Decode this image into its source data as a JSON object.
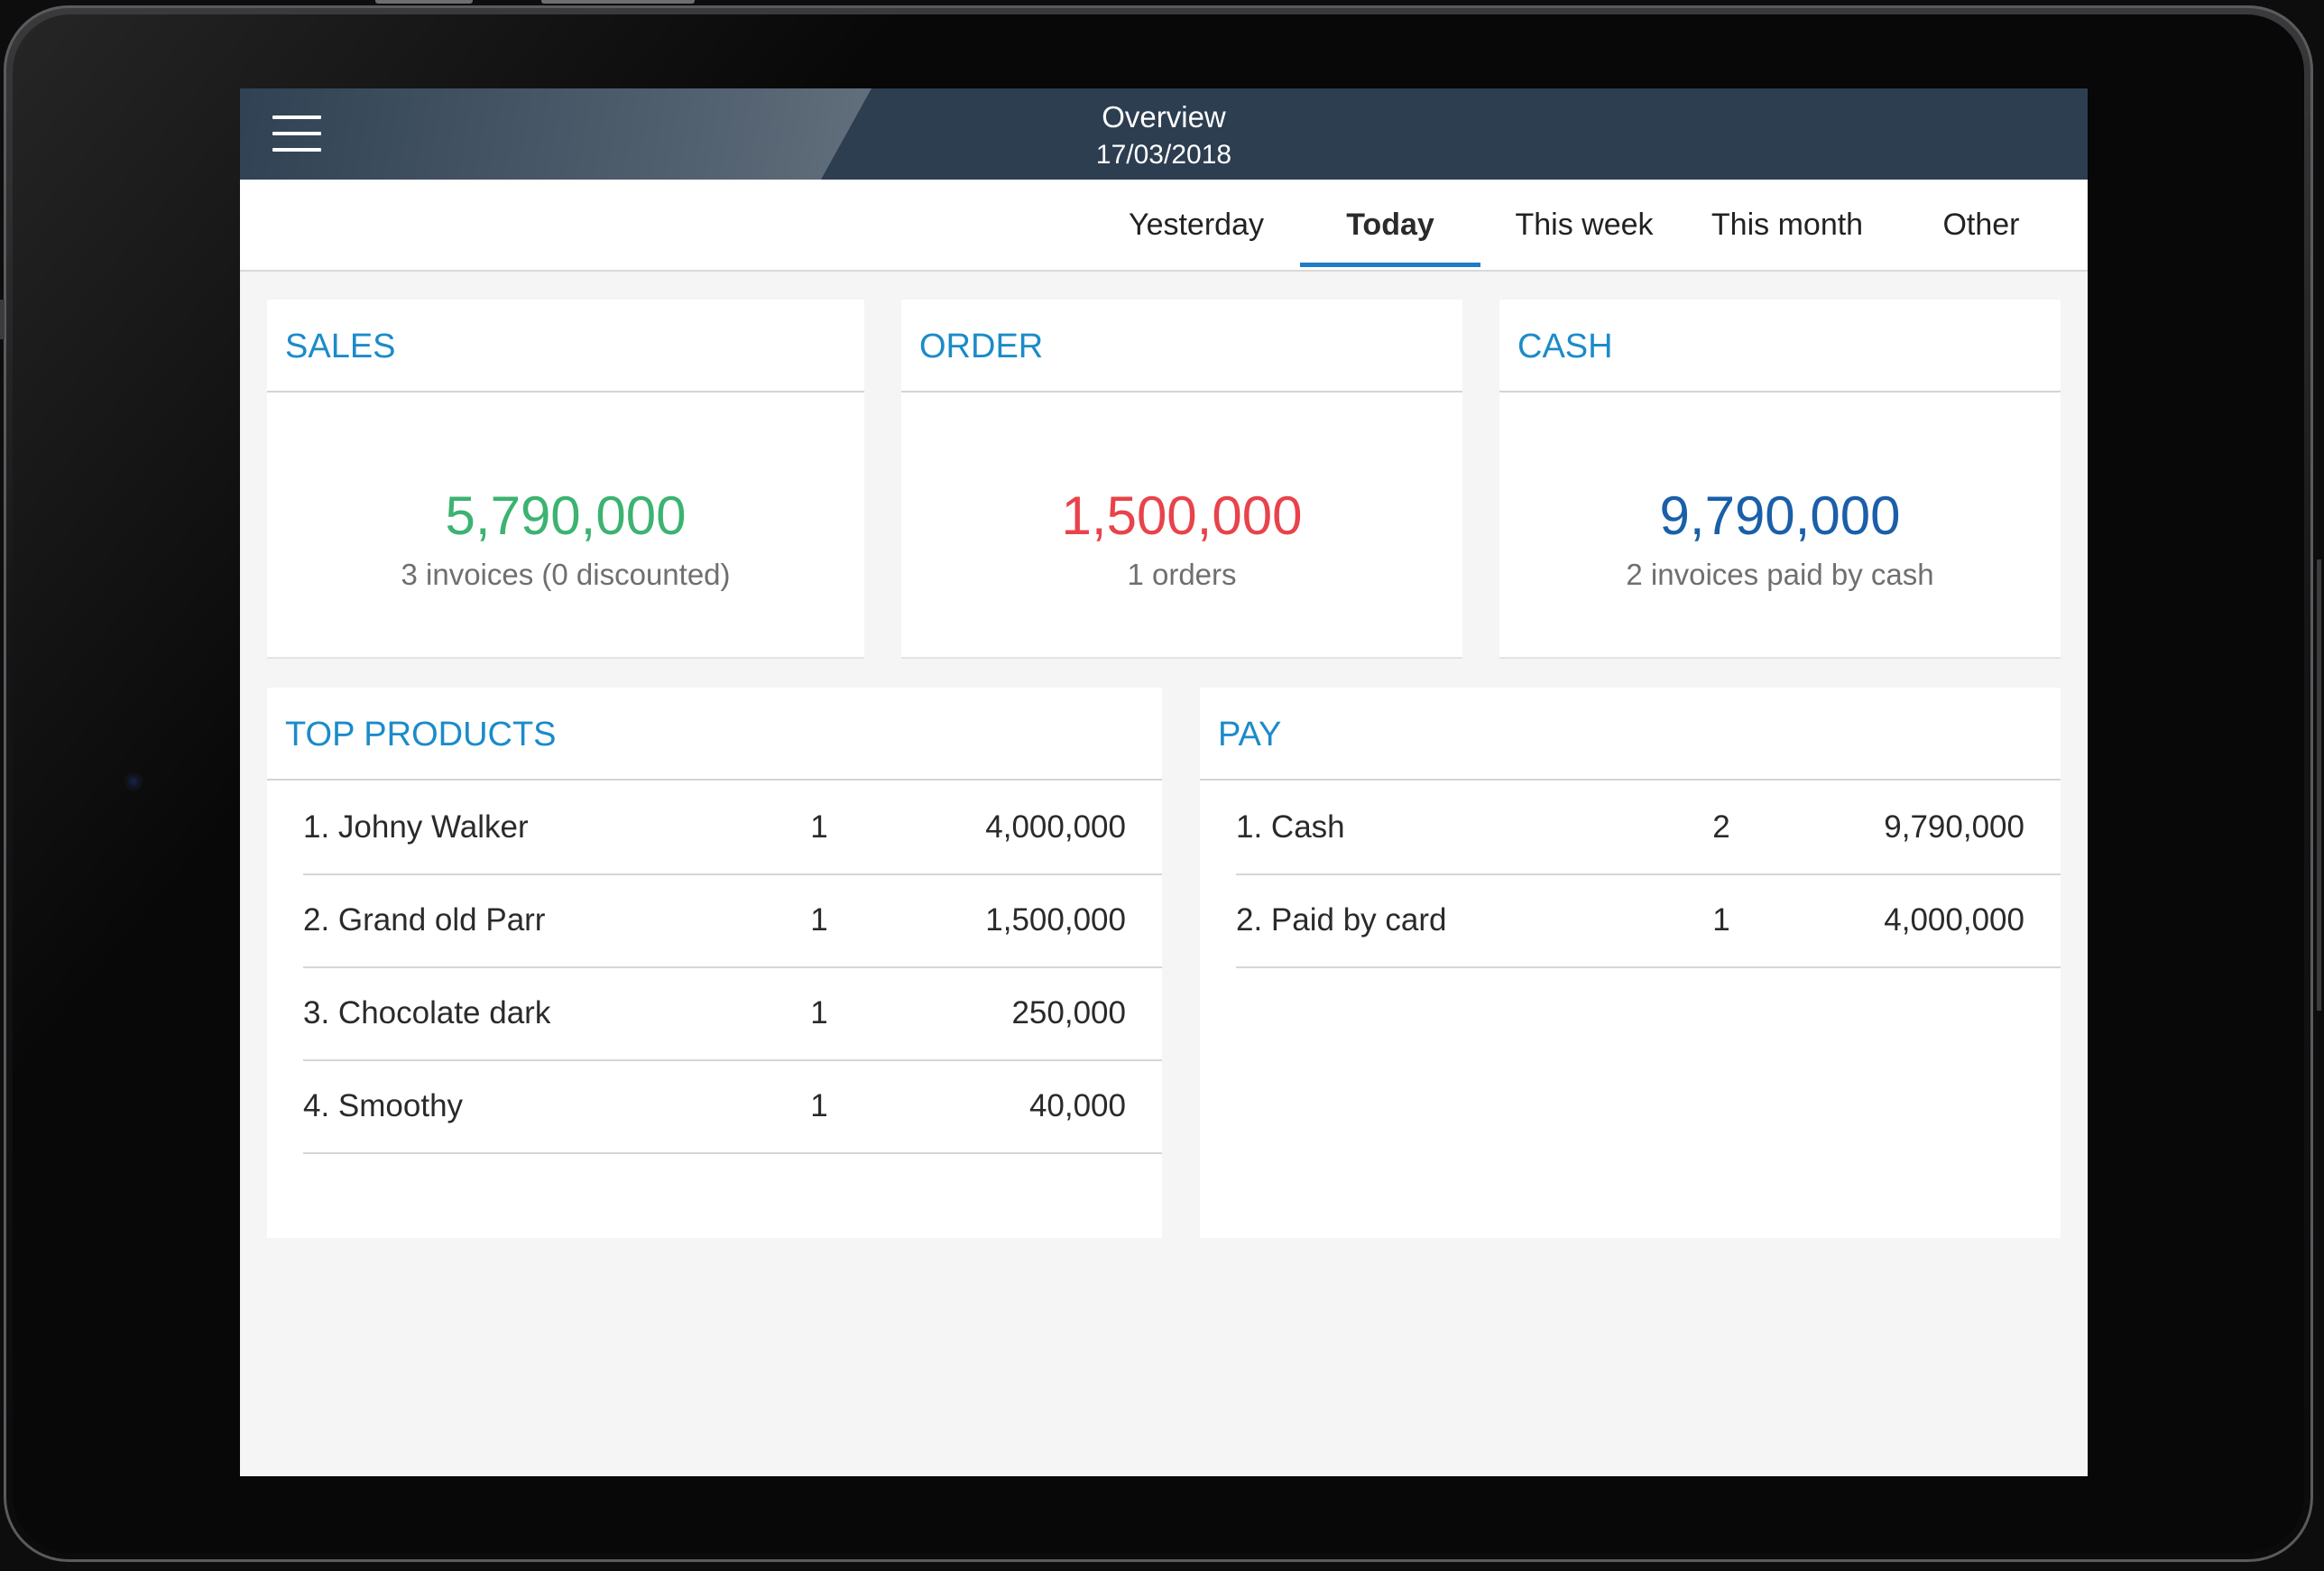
{
  "header": {
    "title": "Overview",
    "date": "17/03/2018"
  },
  "tabs": [
    {
      "label": "Yesterday",
      "active": false
    },
    {
      "label": "Today",
      "active": true
    },
    {
      "label": "This week",
      "active": false
    },
    {
      "label": "This month",
      "active": false
    },
    {
      "label": "Other",
      "active": false
    }
  ],
  "summary": {
    "sales": {
      "title": "SALES",
      "value": "5,790,000",
      "subtitle": "3 invoices (0 discounted)",
      "color": "#3cb371"
    },
    "order": {
      "title": "ORDER",
      "value": "1,500,000",
      "subtitle": "1 orders",
      "color": "#e8434b"
    },
    "cash": {
      "title": "CASH",
      "value": "9,790,000",
      "subtitle": "2 invoices paid by cash",
      "color": "#1a5fa8"
    }
  },
  "top_products": {
    "title": "TOP PRODUCTS",
    "rows": [
      {
        "name": "1. Johny Walker",
        "qty": "1",
        "amount": "4,000,000"
      },
      {
        "name": "2. Grand old Parr",
        "qty": "1",
        "amount": "1,500,000"
      },
      {
        "name": "3. Chocolate dark",
        "qty": "1",
        "amount": "250,000"
      },
      {
        "name": "4. Smoothy",
        "qty": "1",
        "amount": "40,000"
      }
    ]
  },
  "pay": {
    "title": "PAY",
    "rows": [
      {
        "name": "1. Cash",
        "qty": "2",
        "amount": "9,790,000"
      },
      {
        "name": "2. Paid by card",
        "qty": "1",
        "amount": "4,000,000"
      }
    ]
  },
  "colors": {
    "header_bg": "#2c3e50",
    "accent": "#1b8bc9",
    "tab_indicator": "#1e7dc8"
  },
  "icons": {
    "menu": "hamburger-menu-icon"
  }
}
